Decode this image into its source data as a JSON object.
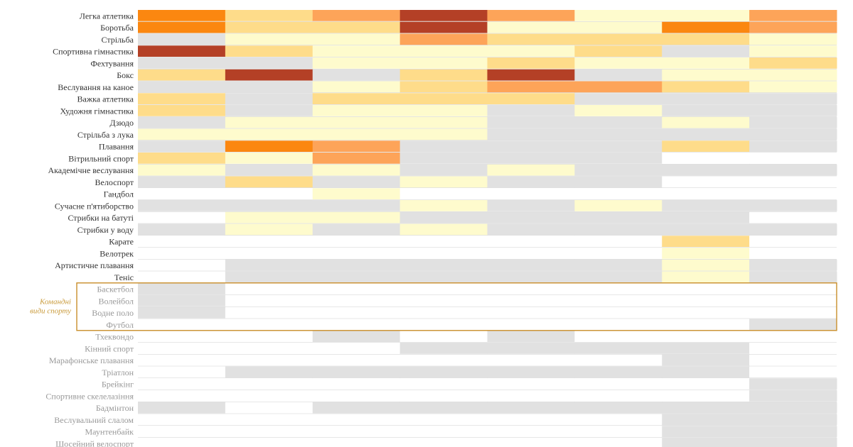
{
  "colors": {
    "none": "#ffffff",
    "gray": "#e1e1e1",
    "level1": "#fefbcd",
    "level2": "#fedc8a",
    "level3": "#fda459",
    "level4": "#fb8710",
    "level5": "#b44026",
    "label_dark": "#333333",
    "label_light": "#999999",
    "group_border": "#c98e2b",
    "group_text": "#c99a3a",
    "separator": "#cfcfcf"
  },
  "group_note": [
    "Командні",
    "види спорту"
  ],
  "chart_data": {
    "type": "heatmap",
    "title": "",
    "xlabel": "",
    "ylabel": "",
    "columns": 8,
    "value_legend": "0 = white cell, 1 = gray cell, 2–6 = yellow → dark red intensity",
    "grouped_rows": [
      "Баскетбол",
      "Волейбол",
      "Водне поло",
      "Футбол"
    ],
    "rows": [
      {
        "label": "Легка атлетика",
        "muted": false,
        "cells": [
          5,
          3,
          4,
          6,
          4,
          2,
          2,
          4
        ]
      },
      {
        "label": "Боротьба",
        "muted": false,
        "cells": [
          5,
          3,
          3,
          6,
          2,
          2,
          5,
          4
        ]
      },
      {
        "label": "Стрільба",
        "muted": false,
        "cells": [
          1,
          2,
          2,
          4,
          3,
          3,
          3,
          2
        ]
      },
      {
        "label": "Спортивна гімнастика",
        "muted": false,
        "cells": [
          6,
          3,
          2,
          2,
          2,
          3,
          1,
          2
        ]
      },
      {
        "label": "Фехтування",
        "muted": false,
        "cells": [
          1,
          1,
          2,
          2,
          3,
          2,
          2,
          3
        ]
      },
      {
        "label": "Бокс",
        "muted": false,
        "cells": [
          3,
          6,
          1,
          3,
          6,
          1,
          2,
          2
        ]
      },
      {
        "label": "Веслування на каное",
        "muted": false,
        "cells": [
          1,
          1,
          2,
          3,
          4,
          4,
          3,
          2
        ]
      },
      {
        "label": "Важка атлетика",
        "muted": false,
        "cells": [
          3,
          1,
          3,
          3,
          3,
          1,
          1,
          1
        ]
      },
      {
        "label": "Художня гімнастика",
        "muted": false,
        "cells": [
          3,
          1,
          2,
          2,
          1,
          2,
          1,
          1
        ]
      },
      {
        "label": "Дзюдо",
        "muted": false,
        "cells": [
          1,
          2,
          2,
          2,
          1,
          1,
          2,
          1
        ]
      },
      {
        "label": "Стрільба з лука",
        "muted": false,
        "cells": [
          2,
          2,
          2,
          2,
          1,
          1,
          1,
          1
        ]
      },
      {
        "label": "Плавання",
        "muted": false,
        "cells": [
          1,
          5,
          4,
          1,
          1,
          1,
          3,
          1
        ]
      },
      {
        "label": "Вітрильний спорт",
        "muted": false,
        "cells": [
          3,
          2,
          4,
          1,
          1,
          1,
          0,
          0
        ]
      },
      {
        "label": "Академічне веслування",
        "muted": false,
        "cells": [
          2,
          1,
          2,
          1,
          2,
          1,
          1,
          1
        ]
      },
      {
        "label": "Велоспорт",
        "muted": false,
        "cells": [
          1,
          3,
          1,
          2,
          1,
          1,
          0,
          0
        ]
      },
      {
        "label": "Гандбол",
        "muted": false,
        "cells": [
          0,
          0,
          2,
          0,
          0,
          0,
          0,
          0
        ]
      },
      {
        "label": "Сучасне п'ятиборство",
        "muted": false,
        "cells": [
          1,
          1,
          1,
          2,
          1,
          2,
          1,
          1
        ]
      },
      {
        "label": "Стрибки на батуті",
        "muted": false,
        "cells": [
          0,
          2,
          2,
          1,
          1,
          1,
          1,
          0
        ]
      },
      {
        "label": "Стрибки у воду",
        "muted": false,
        "cells": [
          1,
          2,
          1,
          2,
          1,
          1,
          1,
          1
        ]
      },
      {
        "label": "Карате",
        "muted": false,
        "cells": [
          0,
          0,
          0,
          0,
          0,
          0,
          3,
          0
        ]
      },
      {
        "label": "Велотрек",
        "muted": false,
        "cells": [
          0,
          0,
          0,
          0,
          0,
          0,
          2,
          0
        ]
      },
      {
        "label": "Артистичне плавання",
        "muted": false,
        "cells": [
          0,
          1,
          1,
          1,
          1,
          1,
          2,
          1
        ]
      },
      {
        "label": "Теніс",
        "muted": false,
        "cells": [
          0,
          1,
          1,
          1,
          1,
          1,
          2,
          1
        ]
      },
      {
        "label": "Баскетбол",
        "muted": true,
        "cells": [
          1,
          0,
          0,
          0,
          0,
          0,
          0,
          0
        ]
      },
      {
        "label": "Волейбол",
        "muted": true,
        "cells": [
          1,
          0,
          0,
          0,
          0,
          0,
          0,
          0
        ]
      },
      {
        "label": "Водне поло",
        "muted": true,
        "cells": [
          1,
          0,
          0,
          0,
          0,
          0,
          0,
          0
        ]
      },
      {
        "label": "Футбол",
        "muted": true,
        "cells": [
          0,
          0,
          0,
          0,
          0,
          0,
          0,
          1
        ]
      },
      {
        "label": "Тхеквондо",
        "muted": true,
        "cells": [
          0,
          0,
          1,
          0,
          1,
          0,
          0,
          0
        ]
      },
      {
        "label": "Кінний спорт",
        "muted": true,
        "cells": [
          0,
          0,
          0,
          1,
          1,
          1,
          1,
          0
        ]
      },
      {
        "label": "Марафонське плавання",
        "muted": true,
        "cells": [
          0,
          0,
          0,
          0,
          0,
          0,
          1,
          0
        ]
      },
      {
        "label": "Тріатлон",
        "muted": true,
        "cells": [
          0,
          1,
          1,
          1,
          1,
          1,
          1,
          0
        ]
      },
      {
        "label": "Брейкінг",
        "muted": true,
        "cells": [
          0,
          0,
          0,
          0,
          0,
          0,
          0,
          1
        ]
      },
      {
        "label": "Спортивне скелелазіння",
        "muted": true,
        "cells": [
          0,
          0,
          0,
          0,
          0,
          0,
          0,
          1
        ]
      },
      {
        "label": "Бадмінтон",
        "muted": true,
        "cells": [
          1,
          0,
          1,
          1,
          1,
          1,
          1,
          1
        ]
      },
      {
        "label": "Веслувальний слалом",
        "muted": true,
        "cells": [
          0,
          0,
          0,
          0,
          0,
          0,
          1,
          1
        ]
      },
      {
        "label": "Маунтенбайк",
        "muted": true,
        "cells": [
          0,
          0,
          0,
          0,
          0,
          0,
          1,
          1
        ]
      },
      {
        "label": "Шосейний велоспорт",
        "muted": true,
        "cells": [
          0,
          0,
          0,
          0,
          0,
          0,
          1,
          1
        ]
      }
    ]
  }
}
